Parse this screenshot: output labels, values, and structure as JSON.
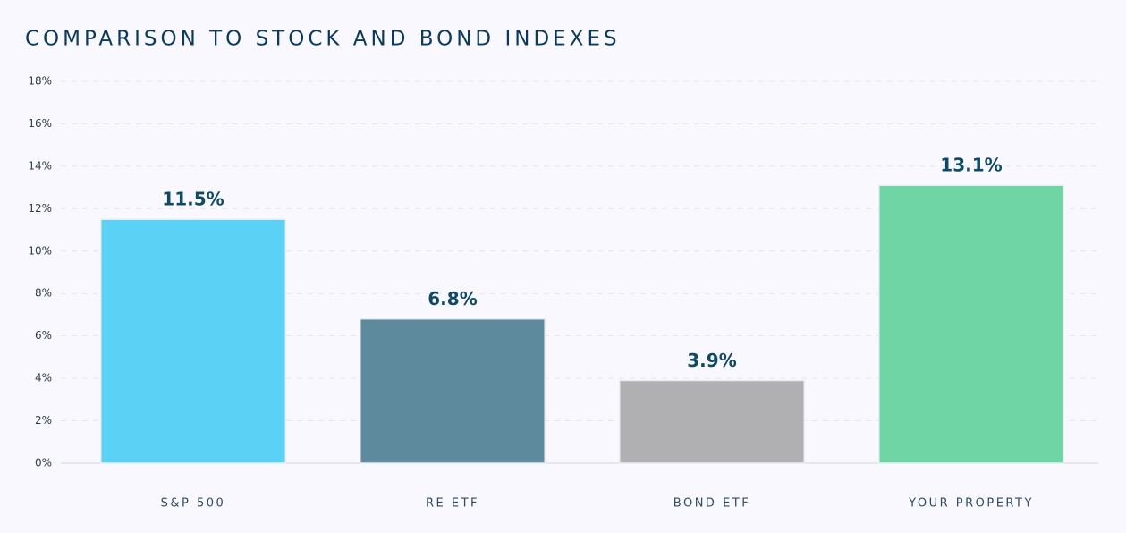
{
  "chart_data": {
    "type": "bar",
    "title": "COMPARISON TO STOCK AND BOND INDEXES",
    "categories": [
      "S&P 500",
      "RE ETF",
      "BOND ETF",
      "YOUR PROPERTY"
    ],
    "values": [
      11.5,
      6.8,
      3.9,
      13.1
    ],
    "value_labels": [
      "11.5%",
      "6.8%",
      "3.9%",
      "13.1%"
    ],
    "colors": [
      "#5ad1f5",
      "#5e8a9e",
      "#b0b0b2",
      "#6fd5a5"
    ],
    "ylim": [
      0,
      18
    ],
    "yticks": [
      {
        "value": 0,
        "label": "0%"
      },
      {
        "value": 2,
        "label": "2%"
      },
      {
        "value": 4,
        "label": "4%"
      },
      {
        "value": 6,
        "label": "6%"
      },
      {
        "value": 8,
        "label": "8%"
      },
      {
        "value": 10,
        "label": "10%"
      },
      {
        "value": 12,
        "label": "12%"
      },
      {
        "value": 14,
        "label": "14%"
      },
      {
        "value": 16,
        "label": "16%"
      },
      {
        "value": 18,
        "label": "18%"
      }
    ],
    "grid": true
  }
}
